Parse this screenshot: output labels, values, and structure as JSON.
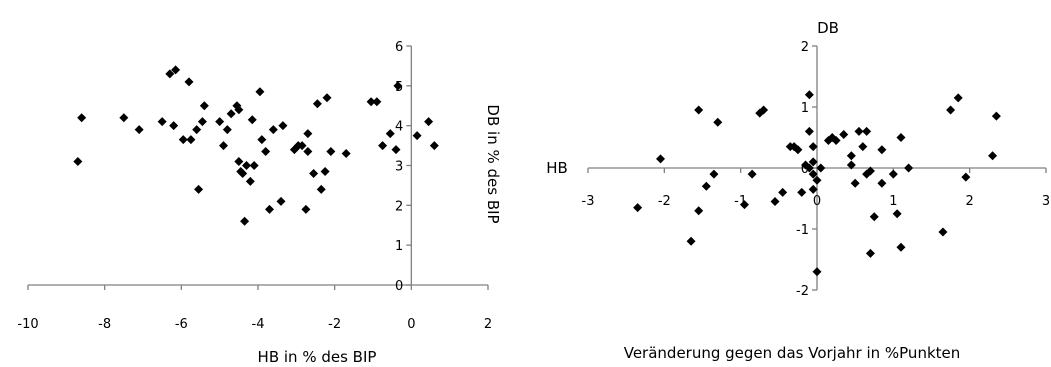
{
  "chart_data": [
    {
      "type": "scatter",
      "marker": "diamond",
      "marker_color": "#000000",
      "axis_color": "#808080",
      "xlabel": "HB in % des BIP",
      "ylabel": "DB in % des BIP",
      "xlim": [
        -10,
        2
      ],
      "ylim": [
        0,
        6
      ],
      "x_ticks": [
        "-10",
        "-8",
        "-6",
        "-4",
        "-2",
        "0",
        "2"
      ],
      "y_ticks": [
        "0",
        "1",
        "2",
        "3",
        "4",
        "5",
        "6"
      ],
      "grid": false,
      "points": [
        [
          -8.7,
          3.1
        ],
        [
          -8.6,
          4.2
        ],
        [
          -7.5,
          4.2
        ],
        [
          -7.1,
          3.9
        ],
        [
          -6.5,
          4.1
        ],
        [
          -6.3,
          5.3
        ],
        [
          -6.2,
          4.0
        ],
        [
          -6.15,
          5.4
        ],
        [
          -5.95,
          3.65
        ],
        [
          -5.8,
          5.1
        ],
        [
          -5.75,
          3.65
        ],
        [
          -5.6,
          3.9
        ],
        [
          -5.55,
          2.4
        ],
        [
          -5.45,
          4.1
        ],
        [
          -5.4,
          4.5
        ],
        [
          -5.0,
          4.1
        ],
        [
          -4.9,
          3.5
        ],
        [
          -4.8,
          3.9
        ],
        [
          -4.7,
          4.3
        ],
        [
          -4.55,
          4.5
        ],
        [
          -4.5,
          4.4
        ],
        [
          -4.5,
          3.1
        ],
        [
          -4.45,
          2.85
        ],
        [
          -4.4,
          2.8
        ],
        [
          -4.35,
          1.6
        ],
        [
          -4.3,
          3.0
        ],
        [
          -4.2,
          2.6
        ],
        [
          -4.15,
          4.15
        ],
        [
          -4.1,
          3.0
        ],
        [
          -3.95,
          4.85
        ],
        [
          -3.9,
          3.65
        ],
        [
          -3.8,
          3.35
        ],
        [
          -3.7,
          1.9
        ],
        [
          -3.6,
          3.9
        ],
        [
          -3.4,
          2.1
        ],
        [
          -3.35,
          4.0
        ],
        [
          -3.05,
          3.4
        ],
        [
          -2.95,
          3.5
        ],
        [
          -2.85,
          3.5
        ],
        [
          -2.75,
          1.9
        ],
        [
          -2.7,
          3.8
        ],
        [
          -2.7,
          3.35
        ],
        [
          -2.55,
          2.8
        ],
        [
          -2.45,
          4.55
        ],
        [
          -2.35,
          2.4
        ],
        [
          -2.25,
          2.85
        ],
        [
          -2.2,
          4.7
        ],
        [
          -2.1,
          3.35
        ],
        [
          -1.7,
          3.3
        ],
        [
          -1.05,
          4.6
        ],
        [
          -0.9,
          4.6
        ],
        [
          -0.75,
          3.5
        ],
        [
          -0.55,
          3.8
        ],
        [
          -0.4,
          3.4
        ],
        [
          -0.35,
          5.0
        ],
        [
          0.15,
          3.75
        ],
        [
          0.45,
          4.1
        ],
        [
          0.6,
          3.5
        ]
      ]
    },
    {
      "type": "scatter",
      "marker": "diamond",
      "marker_color": "#000000",
      "axis_color": "#808080",
      "xlabel": "HB",
      "ylabel": "DB",
      "caption": "Veränderung gegen das Vorjahr in %Punkten",
      "xlim": [
        -3,
        3
      ],
      "ylim": [
        -2,
        2
      ],
      "x_ticks": [
        "-3",
        "-2",
        "-1",
        "0",
        "1",
        "2",
        "3"
      ],
      "y_ticks": [
        "-2",
        "-1",
        "0",
        "1",
        "2"
      ],
      "grid": false,
      "points": [
        [
          -2.35,
          -0.65
        ],
        [
          -2.05,
          0.15
        ],
        [
          -1.65,
          -1.2
        ],
        [
          -1.55,
          -0.7
        ],
        [
          -1.55,
          0.95
        ],
        [
          -1.45,
          -0.3
        ],
        [
          -1.35,
          -0.1
        ],
        [
          -1.3,
          0.75
        ],
        [
          -0.95,
          -0.6
        ],
        [
          -0.85,
          -0.1
        ],
        [
          -0.75,
          0.9
        ],
        [
          -0.7,
          0.95
        ],
        [
          -0.55,
          -0.55
        ],
        [
          -0.45,
          -0.4
        ],
        [
          -0.35,
          0.35
        ],
        [
          -0.3,
          0.35
        ],
        [
          -0.25,
          0.3
        ],
        [
          -0.2,
          -0.4
        ],
        [
          -0.15,
          0.05
        ],
        [
          -0.1,
          1.2
        ],
        [
          -0.1,
          0.6
        ],
        [
          -0.1,
          0.0
        ],
        [
          -0.05,
          0.35
        ],
        [
          -0.05,
          0.1
        ],
        [
          -0.05,
          -0.1
        ],
        [
          -0.05,
          -0.35
        ],
        [
          0.0,
          -0.2
        ],
        [
          0.0,
          -1.7
        ],
        [
          0.05,
          0.0
        ],
        [
          0.15,
          0.45
        ],
        [
          0.2,
          0.5
        ],
        [
          0.25,
          0.45
        ],
        [
          0.35,
          0.55
        ],
        [
          0.45,
          0.2
        ],
        [
          0.45,
          0.05
        ],
        [
          0.5,
          -0.25
        ],
        [
          0.55,
          0.6
        ],
        [
          0.6,
          0.35
        ],
        [
          0.65,
          0.6
        ],
        [
          0.65,
          -0.1
        ],
        [
          0.7,
          -1.4
        ],
        [
          0.7,
          -0.05
        ],
        [
          0.75,
          -0.8
        ],
        [
          0.85,
          0.3
        ],
        [
          0.85,
          -0.25
        ],
        [
          1.0,
          -0.1
        ],
        [
          1.05,
          -0.75
        ],
        [
          1.1,
          0.5
        ],
        [
          1.1,
          -1.3
        ],
        [
          1.2,
          0.0
        ],
        [
          1.65,
          -1.05
        ],
        [
          1.75,
          0.95
        ],
        [
          1.85,
          1.15
        ],
        [
          1.95,
          -0.15
        ],
        [
          2.3,
          0.2
        ],
        [
          2.35,
          0.85
        ]
      ]
    }
  ]
}
